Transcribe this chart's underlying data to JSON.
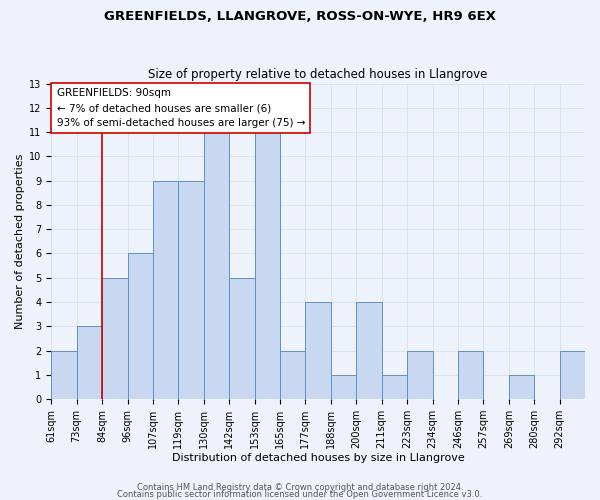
{
  "title": "GREENFIELDS, LLANGROVE, ROSS-ON-WYE, HR9 6EX",
  "subtitle": "Size of property relative to detached houses in Llangrove",
  "xlabel": "Distribution of detached houses by size in Llangrove",
  "ylabel": "Number of detached properties",
  "bar_color": "#c8d8f0",
  "bar_edge_color": "#6090c8",
  "bin_labels": [
    "61sqm",
    "73sqm",
    "84sqm",
    "96sqm",
    "107sqm",
    "119sqm",
    "130sqm",
    "142sqm",
    "153sqm",
    "165sqm",
    "177sqm",
    "188sqm",
    "200sqm",
    "211sqm",
    "223sqm",
    "234sqm",
    "246sqm",
    "257sqm",
    "269sqm",
    "280sqm",
    "292sqm"
  ],
  "heights": [
    2,
    3,
    5,
    6,
    9,
    9,
    11,
    5,
    11,
    2,
    4,
    1,
    4,
    1,
    2,
    0,
    2,
    0,
    1,
    0,
    2
  ],
  "ylim": [
    0,
    13
  ],
  "yticks": [
    0,
    1,
    2,
    3,
    4,
    5,
    6,
    7,
    8,
    9,
    10,
    11,
    12,
    13
  ],
  "vline_x": 2,
  "vline_color": "#cc0000",
  "annotation_title": "GREENFIELDS: 90sqm",
  "annotation_line1": "← 7% of detached houses are smaller (6)",
  "annotation_line2": "93% of semi-detached houses are larger (75) →",
  "footer1": "Contains HM Land Registry data © Crown copyright and database right 2024.",
  "footer2": "Contains public sector information licensed under the Open Government Licence v3.0.",
  "background_color": "#eef2fa",
  "grid_color": "#d8e0f0",
  "title_fontsize": 9.5,
  "subtitle_fontsize": 8.5,
  "axis_label_fontsize": 8,
  "tick_fontsize": 7,
  "annotation_fontsize": 7.5,
  "footer_fontsize": 6
}
